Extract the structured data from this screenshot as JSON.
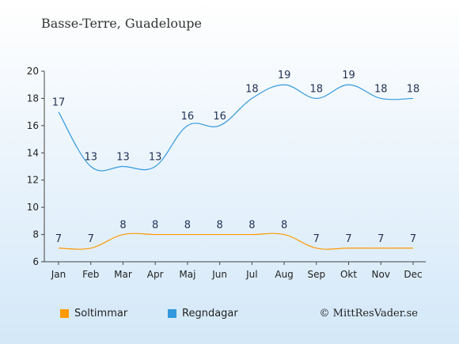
{
  "chart_data": {
    "type": "line",
    "title": "Basse-Terre, Guadeloupe",
    "categories": [
      "Jan",
      "Feb",
      "Mar",
      "Apr",
      "Maj",
      "Jun",
      "Jul",
      "Aug",
      "Sep",
      "Okt",
      "Nov",
      "Dec"
    ],
    "series": [
      {
        "name": "Soltimmar",
        "color": "#ff9900",
        "values": [
          7,
          7,
          8,
          8,
          8,
          8,
          8,
          8,
          7,
          7,
          7,
          7
        ]
      },
      {
        "name": "Regndagar",
        "color": "#3399dd",
        "values": [
          17,
          13,
          13,
          13,
          16,
          16,
          18,
          19,
          18,
          19,
          18,
          18
        ]
      }
    ],
    "ylim": [
      6,
      20
    ],
    "yticks": [
      6,
      8,
      10,
      12,
      14,
      16,
      18,
      20
    ],
    "grid": false,
    "legend": "bottom-left"
  },
  "copyright": "© MittResVader.se"
}
